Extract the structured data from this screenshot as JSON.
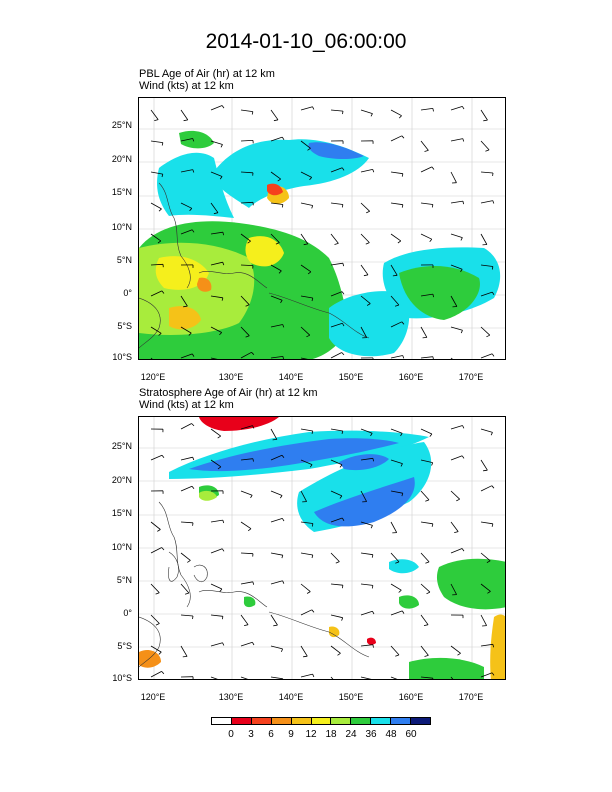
{
  "title": "2014-01-10_06:00:00",
  "panels": [
    {
      "line1": "PBL Age of Air   (hr)    at  12 km",
      "line2": "Wind   (kts)    at  12 km"
    },
    {
      "line1": "Stratosphere Age of Air   (hr)    at  12 km",
      "line2": "Wind   (kts)    at  12 km"
    }
  ],
  "lat_labels": [
    "25°N",
    "20°N",
    "15°N",
    "10°N",
    "5°N",
    "0°",
    "5°S",
    "10°S"
  ],
  "lon_labels": [
    "120°E",
    "130°E",
    "140°E",
    "150°E",
    "160°E",
    "170°E"
  ],
  "colorbar": {
    "labels": [
      "0",
      "3",
      "6",
      "9",
      "12",
      "18",
      "24",
      "36",
      "48",
      "60"
    ],
    "colors": [
      "#ffffff",
      "#e8001a",
      "#f5411d",
      "#f59018",
      "#f5c218",
      "#f5ef1c",
      "#a8ec3c",
      "#2ecc3c",
      "#19e0ea",
      "#2f7ef0",
      "#0c1a78"
    ]
  }
}
